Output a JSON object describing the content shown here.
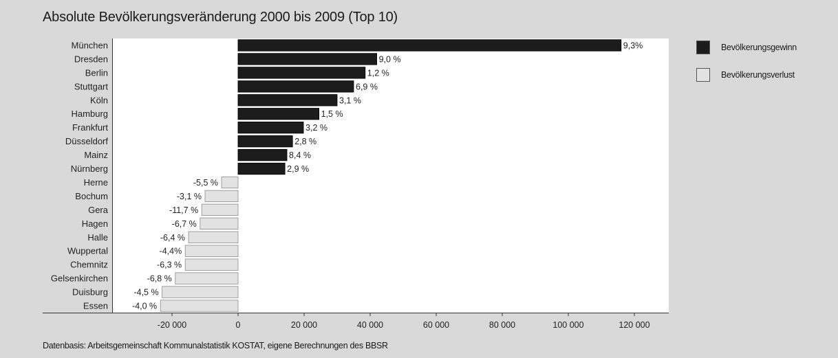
{
  "title": "Absolute Bevölkerungsveränderung 2000 bis 2009 (Top 10)",
  "footer": "Datenbasis: Arbeitsgemeinschaft Kommunalstatistik KOSTAT, eigene Berechnungen des BBSR",
  "colors": {
    "gain": "#1c1c1c",
    "loss": "#e2e2e2",
    "background": "#d9d9d9",
    "plot": "#ffffff"
  },
  "legend": [
    {
      "label": "Bevölkerungsgewinn",
      "color": "#1c1c1c"
    },
    {
      "label": "Bevölkerungsverlust",
      "color": "#e2e2e2"
    }
  ],
  "chart_data": {
    "type": "bar",
    "orientation": "horizontal",
    "title": "Absolute Bevölkerungsveränderung 2000 bis 2009 (Top 10)",
    "xlim": [
      -30000,
      130000
    ],
    "xticks": [
      -20000,
      0,
      20000,
      40000,
      60000,
      80000,
      100000,
      120000
    ],
    "xtick_labels": [
      "-20 000",
      "0",
      "20 000",
      "40 000",
      "60 000",
      "80 000",
      "100 000",
      "120 000"
    ],
    "grid": false,
    "legend_position": "right",
    "series": [
      {
        "name": "Bevölkerungsgewinn",
        "color": "#1c1c1c"
      },
      {
        "name": "Bevölkerungsverlust",
        "color": "#e2e2e2"
      }
    ],
    "categories": [
      "München",
      "Dresden",
      "Berlin",
      "Stuttgart",
      "Köln",
      "Hamburg",
      "Frankfurt",
      "Düsseldorf",
      "Mainz",
      "Nürnberg",
      "Herne",
      "Bochum",
      "Gera",
      "Hagen",
      "Halle",
      "Wuppertal",
      "Chemnitz",
      "Gelsenkirchen",
      "Duisburg",
      "Essen"
    ],
    "values": [
      116000,
      42000,
      38500,
      35000,
      30000,
      24500,
      19800,
      16500,
      14800,
      14200,
      -5000,
      -10000,
      -11000,
      -11500,
      -15000,
      -16000,
      -16000,
      -19000,
      -23000,
      -23500
    ],
    "labels": [
      "9,3%",
      "9,0 %",
      "1,2 %",
      "6,9 %",
      "3,1 %",
      "1,5 %",
      "3,2 %",
      "2,8 %",
      "8,4 %",
      "2,9 %",
      "-5,5 %",
      "-3,1 %",
      "-11,7 %",
      "-6,7 %",
      "-6,4 %",
      "-4,4%",
      "-6,3 %",
      "-6,8 %",
      "-4,5 %",
      "-4,0 %"
    ]
  }
}
